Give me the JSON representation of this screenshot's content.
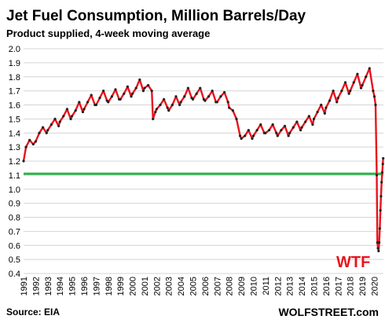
{
  "chart_data": {
    "type": "line",
    "title": "Jet Fuel Consumption,  Million Barrels/Day",
    "subtitle": "Product supplied, 4-week moving average",
    "ylim": [
      0.4,
      2.0
    ],
    "yticks": [
      "0.4",
      "0.5",
      "0.6",
      "0.7",
      "0.8",
      "0.9",
      "1.0",
      "1.1",
      "1.2",
      "1.3",
      "1.4",
      "1.5",
      "1.6",
      "1.7",
      "1.8",
      "1.9",
      "2.0"
    ],
    "xlim": [
      1991,
      2020.75
    ],
    "xticks": [
      "1991",
      "1992",
      "1993",
      "1994",
      "1995",
      "1996",
      "1997",
      "1998",
      "1999",
      "2000",
      "2001",
      "2002",
      "2003",
      "2004",
      "2005",
      "2006",
      "2007",
      "2008",
      "2009",
      "2010",
      "2011",
      "2012",
      "2013",
      "2014",
      "2015",
      "2016",
      "2017",
      "2018",
      "2019",
      "2020"
    ],
    "grid": true,
    "series": [
      {
        "color": "#e8141c",
        "marker_color": "#222222",
        "points": [
          [
            1991.0,
            1.2
          ],
          [
            1991.2,
            1.3
          ],
          [
            1991.5,
            1.35
          ],
          [
            1991.8,
            1.32
          ],
          [
            1992.0,
            1.34
          ],
          [
            1992.3,
            1.4
          ],
          [
            1992.6,
            1.44
          ],
          [
            1992.9,
            1.4
          ],
          [
            1993.0,
            1.42
          ],
          [
            1993.3,
            1.46
          ],
          [
            1993.6,
            1.5
          ],
          [
            1993.9,
            1.45
          ],
          [
            1994.0,
            1.48
          ],
          [
            1994.3,
            1.52
          ],
          [
            1994.6,
            1.57
          ],
          [
            1994.9,
            1.5
          ],
          [
            1995.0,
            1.52
          ],
          [
            1995.3,
            1.56
          ],
          [
            1995.6,
            1.62
          ],
          [
            1995.9,
            1.55
          ],
          [
            1996.0,
            1.57
          ],
          [
            1996.3,
            1.62
          ],
          [
            1996.6,
            1.67
          ],
          [
            1996.9,
            1.6
          ],
          [
            1997.0,
            1.6
          ],
          [
            1997.3,
            1.65
          ],
          [
            1997.6,
            1.7
          ],
          [
            1997.9,
            1.63
          ],
          [
            1998.0,
            1.62
          ],
          [
            1998.3,
            1.66
          ],
          [
            1998.6,
            1.71
          ],
          [
            1998.9,
            1.64
          ],
          [
            1999.0,
            1.64
          ],
          [
            1999.3,
            1.68
          ],
          [
            1999.6,
            1.73
          ],
          [
            1999.9,
            1.66
          ],
          [
            2000.0,
            1.68
          ],
          [
            2000.3,
            1.72
          ],
          [
            2000.6,
            1.78
          ],
          [
            2000.9,
            1.7
          ],
          [
            2001.0,
            1.72
          ],
          [
            2001.3,
            1.74
          ],
          [
            2001.6,
            1.7
          ],
          [
            2001.7,
            1.5
          ],
          [
            2001.9,
            1.55
          ],
          [
            2002.0,
            1.57
          ],
          [
            2002.3,
            1.6
          ],
          [
            2002.6,
            1.64
          ],
          [
            2002.9,
            1.58
          ],
          [
            2003.0,
            1.56
          ],
          [
            2003.3,
            1.6
          ],
          [
            2003.6,
            1.66
          ],
          [
            2003.9,
            1.6
          ],
          [
            2004.0,
            1.62
          ],
          [
            2004.3,
            1.66
          ],
          [
            2004.6,
            1.72
          ],
          [
            2004.9,
            1.65
          ],
          [
            2005.0,
            1.64
          ],
          [
            2005.3,
            1.68
          ],
          [
            2005.6,
            1.72
          ],
          [
            2005.9,
            1.64
          ],
          [
            2006.0,
            1.63
          ],
          [
            2006.3,
            1.66
          ],
          [
            2006.6,
            1.7
          ],
          [
            2006.9,
            1.62
          ],
          [
            2007.0,
            1.62
          ],
          [
            2007.3,
            1.66
          ],
          [
            2007.6,
            1.69
          ],
          [
            2007.9,
            1.62
          ],
          [
            2008.0,
            1.58
          ],
          [
            2008.3,
            1.56
          ],
          [
            2008.6,
            1.5
          ],
          [
            2008.9,
            1.38
          ],
          [
            2009.0,
            1.36
          ],
          [
            2009.3,
            1.38
          ],
          [
            2009.6,
            1.42
          ],
          [
            2009.9,
            1.36
          ],
          [
            2010.0,
            1.38
          ],
          [
            2010.3,
            1.42
          ],
          [
            2010.6,
            1.46
          ],
          [
            2010.9,
            1.4
          ],
          [
            2011.0,
            1.4
          ],
          [
            2011.3,
            1.42
          ],
          [
            2011.6,
            1.46
          ],
          [
            2011.9,
            1.4
          ],
          [
            2012.0,
            1.38
          ],
          [
            2012.3,
            1.42
          ],
          [
            2012.6,
            1.45
          ],
          [
            2012.9,
            1.38
          ],
          [
            2013.0,
            1.4
          ],
          [
            2013.3,
            1.44
          ],
          [
            2013.6,
            1.48
          ],
          [
            2013.9,
            1.42
          ],
          [
            2014.0,
            1.44
          ],
          [
            2014.3,
            1.48
          ],
          [
            2014.6,
            1.52
          ],
          [
            2014.9,
            1.46
          ],
          [
            2015.0,
            1.5
          ],
          [
            2015.3,
            1.55
          ],
          [
            2015.6,
            1.6
          ],
          [
            2015.9,
            1.54
          ],
          [
            2016.0,
            1.58
          ],
          [
            2016.3,
            1.63
          ],
          [
            2016.6,
            1.7
          ],
          [
            2016.9,
            1.62
          ],
          [
            2017.0,
            1.65
          ],
          [
            2017.3,
            1.7
          ],
          [
            2017.6,
            1.76
          ],
          [
            2017.9,
            1.68
          ],
          [
            2018.0,
            1.7
          ],
          [
            2018.3,
            1.76
          ],
          [
            2018.6,
            1.82
          ],
          [
            2018.9,
            1.72
          ],
          [
            2019.0,
            1.74
          ],
          [
            2019.3,
            1.8
          ],
          [
            2019.6,
            1.86
          ],
          [
            2019.9,
            1.7
          ],
          [
            2020.0,
            1.66
          ],
          [
            2020.1,
            1.6
          ],
          [
            2020.2,
            1.1
          ],
          [
            2020.25,
            0.62
          ],
          [
            2020.3,
            0.58
          ],
          [
            2020.35,
            0.56
          ],
          [
            2020.4,
            0.62
          ],
          [
            2020.45,
            0.72
          ],
          [
            2020.5,
            0.85
          ],
          [
            2020.55,
            0.95
          ],
          [
            2020.6,
            1.05
          ],
          [
            2020.65,
            1.12
          ],
          [
            2020.7,
            1.18
          ],
          [
            2020.73,
            1.22
          ]
        ]
      }
    ],
    "reference_line": {
      "y": 1.11,
      "color": "#2db34a"
    },
    "annotation": {
      "text": "WTF",
      "color": "#e8141c"
    },
    "footer_left": "Source: EIA",
    "footer_right": "WOLFSTREET.com"
  }
}
